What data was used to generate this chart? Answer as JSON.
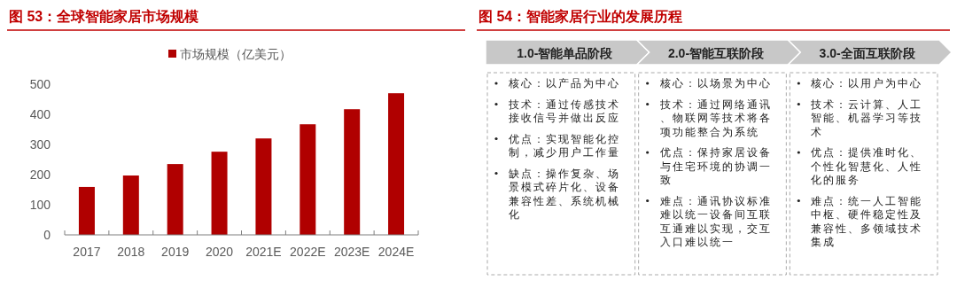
{
  "chart_data": [
    {
      "type": "bar",
      "title": "图 53：全球智能家居市场规模",
      "categories": [
        "2017",
        "2018",
        "2019",
        "2020",
        "2021E",
        "2022E",
        "2023E",
        "2024E"
      ],
      "series": [
        {
          "name": "市场规模（亿美元）",
          "color": "#b00000",
          "values": [
            159,
            197,
            235,
            276,
            320,
            367,
            417,
            470
          ]
        }
      ],
      "ylim": [
        0,
        500
      ],
      "yticks": [
        0,
        100,
        200,
        300,
        400,
        500
      ],
      "legend": "top",
      "grid": false
    },
    {
      "type": "other",
      "title": "图 54：智能家居行业的发展历程",
      "categories": [
        "1.0-智能单品阶段",
        "2.0-智能互联阶段",
        "3.0-全面互联阶段"
      ],
      "annotations": [
        "核心：以产品为中心",
        "技术：通过传感技术接收信号并做出反应",
        "优点：实现智能化控制，减少用户工作量",
        "缺点：操作复杂、场景模式碎片化、设备兼容性差、系统机械化",
        "核心：以场景为中心",
        "技术：通过网络通讯、物联网等技术将各项功能整合为系统",
        "优点：保持家居设备与住宅环境的协调一致",
        "难点：通讯协议标准难以统一设备间互联互通难以实现，交互入口难以统一",
        "核心：以用户为中心",
        "技术：云计算、人工智能、机器学习等技术",
        "优点：提供准时化、个性化智慧化、人性化的服务",
        "难点：统一人工智能中枢、硬件稳定性及兼容性、多领域技术集成"
      ]
    }
  ]
}
